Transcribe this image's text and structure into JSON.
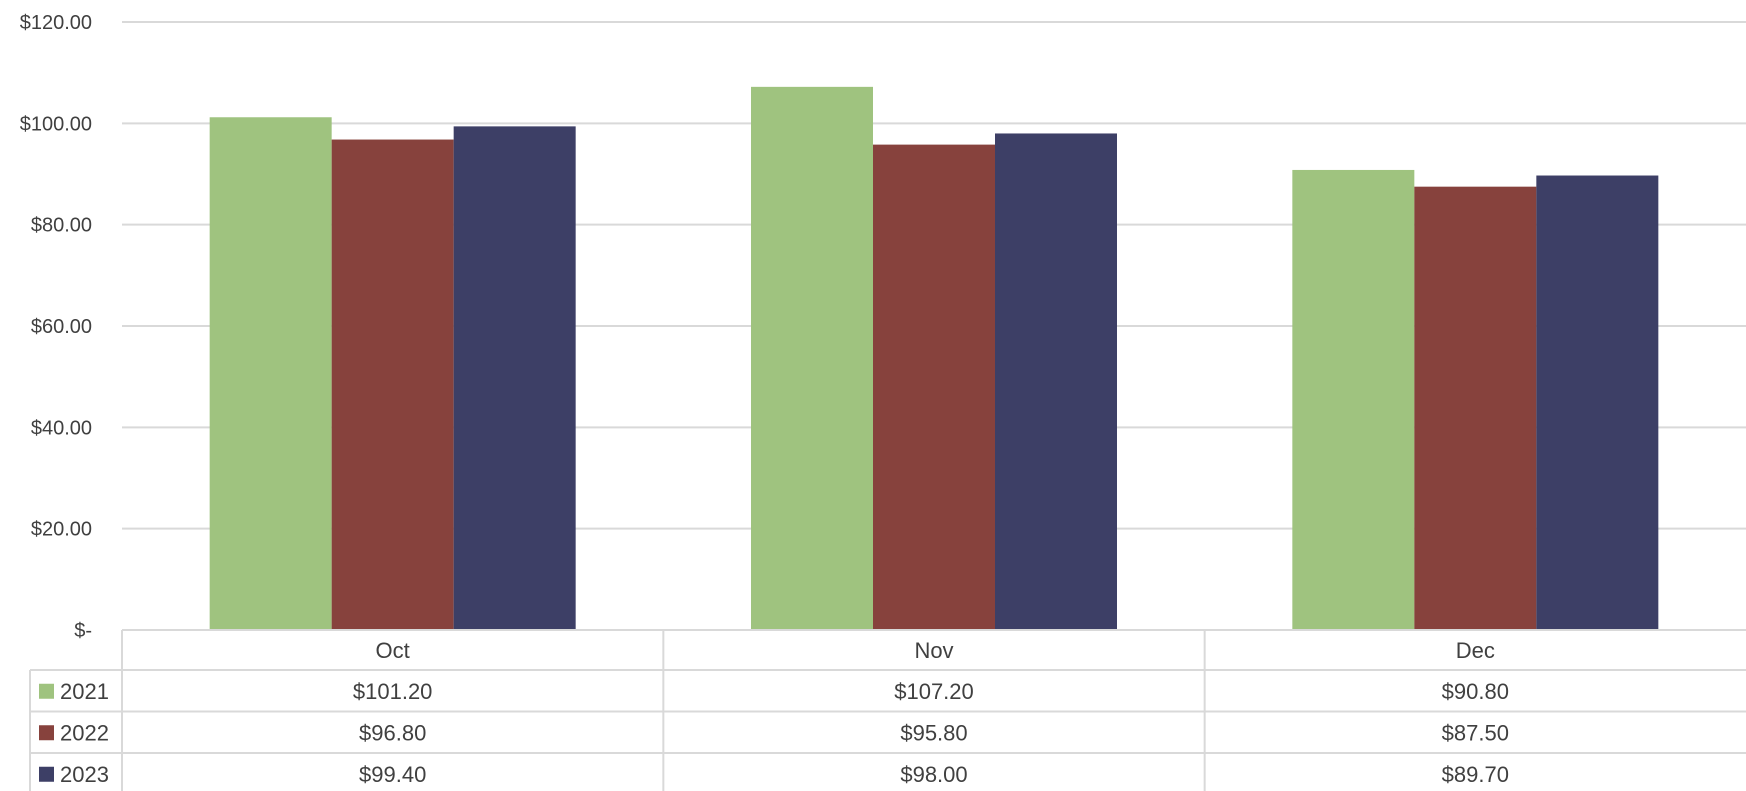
{
  "chart_data": {
    "type": "bar",
    "title": "",
    "xlabel": "",
    "ylabel": "",
    "ylim": [
      0,
      120
    ],
    "yticks": [
      {
        "value": 0,
        "label": "$-"
      },
      {
        "value": 20,
        "label": "$20.00"
      },
      {
        "value": 40,
        "label": "$40.00"
      },
      {
        "value": 60,
        "label": "$60.00"
      },
      {
        "value": 80,
        "label": "$80.00"
      },
      {
        "value": 100,
        "label": "$100.00"
      },
      {
        "value": 120,
        "label": "$120.00"
      }
    ],
    "grid": true,
    "legend": "data-table",
    "categories": [
      "Oct",
      "Nov",
      "Dec"
    ],
    "series": [
      {
        "name": "2021",
        "color": "#9fc37f",
        "values": [
          101.2,
          107.2,
          90.8
        ],
        "labels": [
          "$101.20",
          "$107.20",
          "$90.80"
        ]
      },
      {
        "name": "2022",
        "color": "#87423d",
        "values": [
          96.8,
          95.8,
          87.5
        ],
        "labels": [
          "$96.80",
          "$95.80",
          "$87.50"
        ]
      },
      {
        "name": "2023",
        "color": "#3d3f66",
        "values": [
          99.4,
          98.0,
          89.7
        ],
        "labels": [
          "$99.40",
          "$98.00",
          "$89.70"
        ]
      }
    ]
  }
}
